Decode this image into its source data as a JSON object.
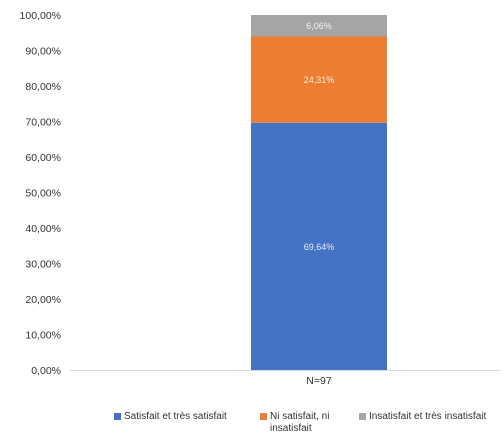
{
  "chart_data": {
    "type": "bar",
    "stacked": true,
    "categories": [
      "N=97"
    ],
    "series": [
      {
        "name": "Satisfait et très satisfait",
        "values": [
          69.64
        ],
        "label": "69,64%",
        "color": "#4472C4"
      },
      {
        "name": "Ni satisfait, ni insatisfait",
        "values": [
          24.31
        ],
        "label": "24,31%",
        "color": "#ED7D31"
      },
      {
        "name": "Insatisfait et très insatisfait",
        "values": [
          6.06
        ],
        "label": "6,06%",
        "color": "#A5A5A5"
      }
    ],
    "y_ticks": [
      "0,00%",
      "10,00%",
      "20,00%",
      "30,00%",
      "40,00%",
      "50,00%",
      "60,00%",
      "70,00%",
      "80,00%",
      "90,00%",
      "100,00%"
    ],
    "ylim": [
      0,
      100
    ],
    "legend_position": "bottom",
    "grid": false
  }
}
